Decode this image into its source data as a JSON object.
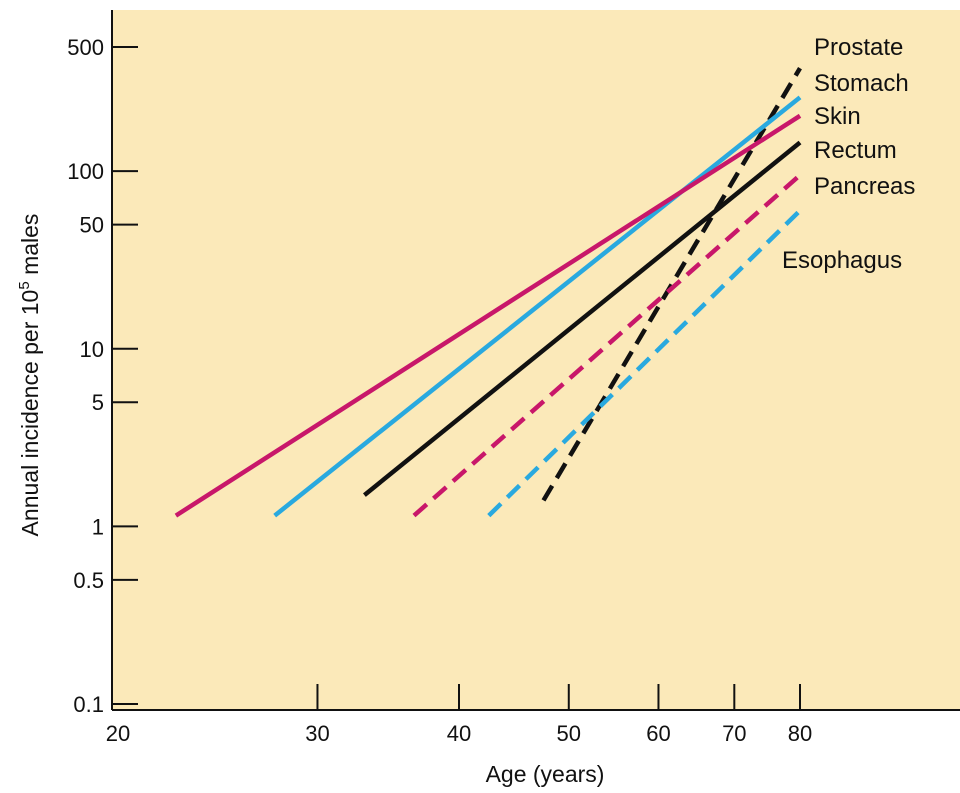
{
  "chart_data": {
    "type": "line",
    "title": "",
    "xlabel": "Age (years)",
    "ylabel_main": "Annual incidence per 10",
    "ylabel_sup": "5",
    "ylabel_tail": " males",
    "x_scale": "log",
    "y_scale": "log",
    "xlim": [
      20,
      80
    ],
    "ylim": [
      0.1,
      800
    ],
    "x_ticks": [
      {
        "value": 20,
        "label": "20"
      },
      {
        "value": 30,
        "label": "30"
      },
      {
        "value": 40,
        "label": "40"
      },
      {
        "value": 50,
        "label": "50"
      },
      {
        "value": 60,
        "label": "60"
      },
      {
        "value": 70,
        "label": "70"
      },
      {
        "value": 80,
        "label": "80"
      }
    ],
    "y_ticks": [
      {
        "value": 0.1,
        "label": "0.1"
      },
      {
        "value": 0.5,
        "label": "0.5"
      },
      {
        "value": 1,
        "label": "1"
      },
      {
        "value": 5,
        "label": "5"
      },
      {
        "value": 10,
        "label": "10"
      },
      {
        "value": 50,
        "label": "50"
      },
      {
        "value": 100,
        "label": "100"
      },
      {
        "value": 500,
        "label": "500"
      }
    ],
    "background_color": "#fbe9b9",
    "grid": false,
    "legend_placement": "right",
    "series": [
      {
        "name": "Prostate",
        "color": "#111111",
        "dashed": true,
        "x": [
          47.5,
          80
        ],
        "y": [
          1.4,
          380
        ]
      },
      {
        "name": "Stomach",
        "color": "#29a9df",
        "dashed": false,
        "x": [
          27.5,
          80
        ],
        "y": [
          1.15,
          260
        ]
      },
      {
        "name": "Skin",
        "color": "#c8176a",
        "dashed": false,
        "x": [
          22.5,
          80
        ],
        "y": [
          1.15,
          205
        ]
      },
      {
        "name": "Rectum",
        "color": "#111111",
        "dashed": false,
        "x": [
          33,
          80
        ],
        "y": [
          1.5,
          145
        ]
      },
      {
        "name": "Pancreas",
        "color": "#c8176a",
        "dashed": true,
        "x": [
          36.5,
          80
        ],
        "y": [
          1.15,
          95
        ]
      },
      {
        "name": "Esophagus",
        "color": "#29a9df",
        "dashed": true,
        "x": [
          42.5,
          80
        ],
        "y": [
          1.15,
          60
        ]
      }
    ]
  }
}
